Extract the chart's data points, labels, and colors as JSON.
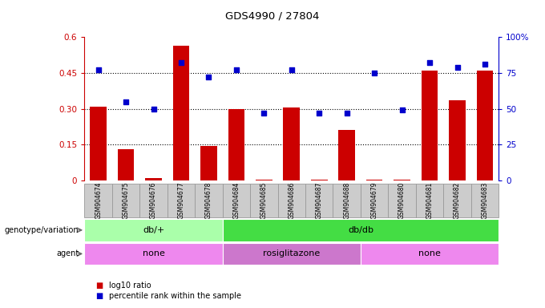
{
  "title": "GDS4990 / 27804",
  "samples": [
    "GSM904674",
    "GSM904675",
    "GSM904676",
    "GSM904677",
    "GSM904678",
    "GSM904684",
    "GSM904685",
    "GSM904686",
    "GSM904687",
    "GSM904688",
    "GSM904679",
    "GSM904680",
    "GSM904681",
    "GSM904682",
    "GSM904683"
  ],
  "log10_ratio": [
    0.31,
    0.13,
    0.01,
    0.565,
    0.145,
    0.3,
    0.005,
    0.305,
    0.005,
    0.21,
    0.005,
    0.005,
    0.46,
    0.335,
    0.46
  ],
  "percentile_rank": [
    77,
    55,
    50,
    82,
    72,
    77,
    47,
    77,
    47,
    47,
    75,
    49,
    82,
    79,
    81
  ],
  "bar_color": "#cc0000",
  "dot_color": "#0000cc",
  "ylim_left": [
    0,
    0.6
  ],
  "ylim_right": [
    0,
    100
  ],
  "yticks_left": [
    0,
    0.15,
    0.3,
    0.45,
    0.6
  ],
  "ytick_labels_left": [
    "0",
    "0.15",
    "0.30",
    "0.45",
    "0.6"
  ],
  "yticks_right": [
    0,
    25,
    50,
    75,
    100
  ],
  "ytick_labels_right": [
    "0",
    "25",
    "50",
    "75",
    "100%"
  ],
  "genotype_groups": [
    {
      "label": "db/+",
      "start": 0,
      "end": 5,
      "color": "#aaffaa"
    },
    {
      "label": "db/db",
      "start": 5,
      "end": 15,
      "color": "#44dd44"
    }
  ],
  "agent_groups": [
    {
      "label": "none",
      "start": 0,
      "end": 5,
      "color": "#ee88ee"
    },
    {
      "label": "rosiglitazone",
      "start": 5,
      "end": 10,
      "color": "#cc77cc"
    },
    {
      "label": "none",
      "start": 10,
      "end": 15,
      "color": "#ee88ee"
    }
  ],
  "legend_bar_label": "log10 ratio",
  "legend_dot_label": "percentile rank within the sample",
  "left_axis_color": "#cc0000",
  "right_axis_color": "#0000cc",
  "background_color": "#ffffff",
  "sample_box_color": "#cccccc",
  "sample_box_edge": "#999999",
  "geno_label": "genotype/variation",
  "agent_label": "agent"
}
